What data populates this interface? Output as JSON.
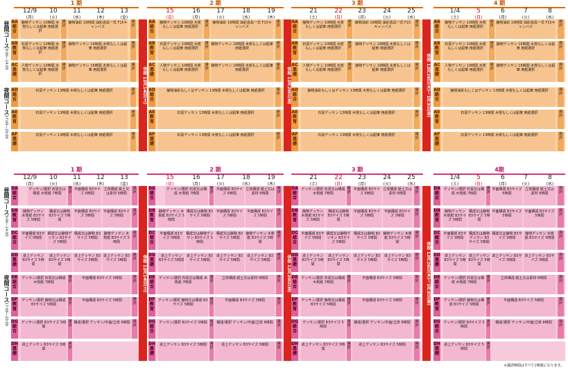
{
  "top": {
    "phases": [
      {
        "label": "1 期"
      },
      {
        "label": "2 期"
      },
      {
        "label": "3 期"
      },
      {
        "label": "4 期"
      }
    ],
    "days1": [
      {
        "d": "12/9",
        "w": "(月)"
      },
      {
        "d": "10",
        "w": "(火)"
      },
      {
        "d": "11",
        "w": "(水)"
      },
      {
        "d": "12",
        "w": "(木)"
      },
      {
        "d": "13",
        "w": "(金)"
      }
    ],
    "days2": [
      {
        "d": "15",
        "w": "(日)"
      },
      {
        "d": "16",
        "w": "(月)"
      },
      {
        "d": "17",
        "w": "(火)"
      },
      {
        "d": "18",
        "w": "(水)"
      },
      {
        "d": "19",
        "w": "(木)"
      }
    ],
    "days3": [
      {
        "d": "21",
        "w": "(土)"
      },
      {
        "d": "22",
        "w": "(日)"
      },
      {
        "d": "23",
        "w": "(月)"
      },
      {
        "d": "24",
        "w": "(火)"
      },
      {
        "d": "25",
        "w": "(水)"
      }
    ],
    "days4": [
      {
        "d": "1/4",
        "w": "(土)"
      },
      {
        "d": "5",
        "w": "(日)"
      },
      {
        "d": "6",
        "w": "(月)"
      },
      {
        "d": "7",
        "w": "(火)"
      },
      {
        "d": "8",
        "w": "(水)"
      }
    ],
    "course_day": "昼間コース",
    "course_day_time": "9:00〜14:00",
    "course_night": "夜間コース",
    "course_night_time": "17:00〜20:00",
    "closed1": "休校",
    "closed1_date": "12月14日(土)",
    "closed2": "休校",
    "closed2_date": "12月20日(金)",
    "closed3": "休校",
    "closed3_date": "12月26日(木)〜1月3日(金)",
    "rows": [
      {
        "code": "AA",
        "sub": "総合"
      },
      {
        "code": "AB",
        "sub": "教育"
      },
      {
        "code": "AC",
        "sub": "基礎"
      },
      {
        "code": "AD",
        "sub": "総合"
      },
      {
        "code": "AE",
        "sub": "教育"
      },
      {
        "code": "AF",
        "sub": "基礎"
      }
    ],
    "cells": {
      "aa1": "静物デッサン 10時間 木炭もしくは鉛筆 用紙選択",
      "aa2": "静物油彩 16時間 油彩道具一式 F15キャンバス",
      "ab1": "石膏デッサン 10時間 木炭もしくは鉛筆 用紙選択",
      "ab2": "静物デッサン 16時間 木炭もしくは鉛筆 用紙選択",
      "ac1": "人物デッサン 10時間 木炭もしくは鉛筆 用紙選択",
      "ac2": "静物デッサン 16時間 木炭もしくは鉛筆 用紙選択",
      "ad": "石膏デッサン 13時間 木炭もしくは鉛筆 用紙選択",
      "ae": "静物油彩もしくはデッサン 13時間 木炭もしくは鉛筆 用紙選択",
      "af": "石膏デッサン 13時間 木炭もしくは鉛筆 用紙選択",
      "kouhyo": "講評"
    }
  },
  "bottom": {
    "phases": [
      {
        "label": "1 期"
      },
      {
        "label": "2 期"
      },
      {
        "label": "3 期"
      },
      {
        "label": "4期"
      }
    ],
    "rows": [
      {
        "code": "DA",
        "sub": "総合"
      },
      {
        "code": "DB",
        "sub": "教育"
      },
      {
        "code": "DC",
        "sub": "総合"
      },
      {
        "code": "DD",
        "sub": "基礎"
      },
      {
        "code": "DE",
        "sub": "総合"
      },
      {
        "code": "DF",
        "sub": "教育"
      },
      {
        "code": "DG",
        "sub": "総合"
      },
      {
        "code": "DH",
        "sub": "基礎"
      }
    ],
    "course_day": "昼間コース",
    "course_day_time": "9:00〜14:00",
    "course_night": "夜間コース",
    "course_night_time": "17:00〜20:00",
    "closed1": "休校",
    "closed1_date": "12月14日(土)",
    "closed2": "休校",
    "closed2_date": "12月20日(金)",
    "closed3": "休校",
    "closed3_date": "12月26日(木)〜1月3日(金)",
    "cells": {
      "da1": "デッサン/選択 石膏又は構成 木炭紙 7時間",
      "da2": "平面構成 B3サイズ 6時間",
      "da3": "立体構成 紙土又は素材 6時間",
      "db1": "静物デッサン 木炭紙 B3サイズ 5時間",
      "db2": "構成又は静物 B3サイズ 5時間",
      "dc1": "構成又は静物デッサン B3サイズ 5時間",
      "dc2": "平面構成 B3サイズ 5時間",
      "dd1": "卓上デッサン B3サイズ 5時間",
      "dd2": "卓上デッサン B3サイズ 5時間",
      "de1": "デッサン/選択 石膏又は構成 木炭紙 7時間",
      "de2": "平面構成 B3サイズ 5時間",
      "de3": "立体構成 紙土又は素材 6時間",
      "df1": "デッサン/選択 静物又は構成 B3サイズ 5時間",
      "df2": "平面構成 B3サイズ 5時間",
      "dg1": "デッサン/選択 B3サイズ 5時間",
      "dg2": "構成/選択 デッサン/平面/立体 8時間",
      "dh1": "卓上デッサン B3サイズ 5時間",
      "kouhyo": "講評"
    }
  },
  "footnote": "※講評時間はすべて1時間になります。",
  "colors": {
    "orange": "#f7c48f",
    "pink": "#f3b7cf",
    "closed": "#d9251d"
  }
}
